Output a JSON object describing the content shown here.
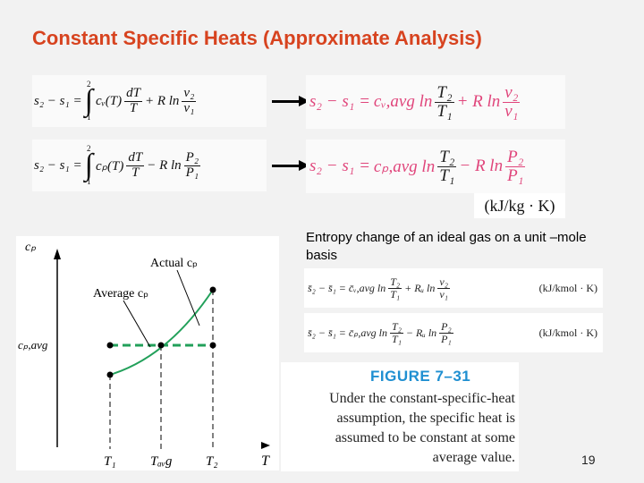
{
  "slide": {
    "title": "Constant Specific Heats (Approximate Analysis)",
    "page_number": "19"
  },
  "equations": {
    "left1": {
      "lhs": "s₂ − s₁ =",
      "int_upper": "2",
      "int_lower": "1",
      "func": "cᵥ(T)",
      "num1": "dT",
      "den1": "T",
      "op": "+ R ln",
      "num2": "v₂",
      "den2": "v₁"
    },
    "left2": {
      "lhs": "s₂ − s₁ =",
      "int_upper": "2",
      "int_lower": "1",
      "func": "cₚ(T)",
      "num1": "dT",
      "den1": "T",
      "op": "− R ln",
      "num2": "P₂",
      "den2": "P₁"
    },
    "right1": {
      "lhs": "s₂ − s₁ =",
      "coef": "cᵥ,avg ln",
      "num1": "T₂",
      "den1": "T₁",
      "op": "+ R ln",
      "num2": "v₂",
      "den2": "v₁"
    },
    "right2": {
      "lhs": "s₂ − s₁ =",
      "coef": "cₚ,avg ln",
      "num1": "T₂",
      "den1": "T₁",
      "op": "− R ln",
      "num2": "P₂",
      "den2": "P₁"
    },
    "units_mass": "(kJ/kg · K)"
  },
  "molar": {
    "caption": "Entropy change of an ideal gas on a unit –mole basis",
    "eq1": {
      "lhs": "s̄₂ − s̄₁ =",
      "coef": "c̄ᵥ,avg ln",
      "num1": "T₂",
      "den1": "T₁",
      "op": "+ Rᵤ ln",
      "num2": "v₂",
      "den2": "v₁",
      "units": "(kJ/kmol · K)"
    },
    "eq2": {
      "lhs": "s̄₂ − s̄₁ =",
      "coef": "c̄ₚ,avg ln",
      "num1": "T₂",
      "den1": "T₁",
      "op": "− Rᵤ ln",
      "num2": "P₂",
      "den2": "P₁",
      "units": "(kJ/kmol · K)"
    }
  },
  "figure": {
    "title": "FIGURE 7–31",
    "caption_lines": [
      "Under the constant-specific-heat",
      "assumption, the specific heat is",
      "assumed to be constant at some",
      "average value."
    ]
  },
  "plot": {
    "y_axis_label": "cₚ",
    "y_tick_label": "cₚ,avg",
    "x_axis_label": "T",
    "x_tick_labels": [
      "T₁",
      "Tₐᵥg",
      "T₂"
    ],
    "actual_label": "Actual cₚ",
    "average_label": "Average cₚ",
    "colors": {
      "curve": "#22a05a",
      "average_line": "#22a05a",
      "axes": "#000000"
    }
  }
}
